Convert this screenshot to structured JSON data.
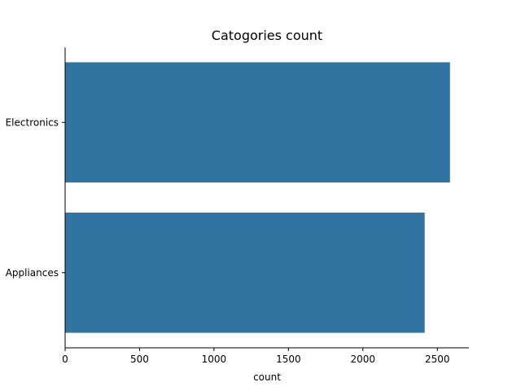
{
  "chart_data": {
    "type": "bar",
    "orientation": "horizontal",
    "title": "Catogories count",
    "xlabel": "count",
    "ylabel": "",
    "categories": [
      "Electronics",
      "Appliances"
    ],
    "values": [
      2585,
      2415
    ],
    "xlim": [
      0,
      2712
    ],
    "xticks": [
      0,
      500,
      1000,
      1500,
      2000,
      2500
    ],
    "bar_color": "#3274a1",
    "grid": false,
    "legend": "none"
  }
}
